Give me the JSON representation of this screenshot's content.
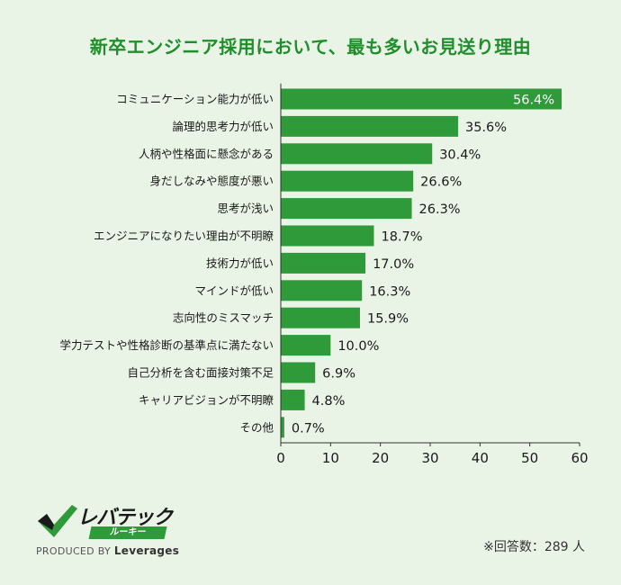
{
  "title": "新卒エンジニア採用において、最も多いお見送り理由",
  "note": "※回答数：289 人",
  "brand": {
    "name": "レバテック",
    "sub": "ルーキー",
    "tag_prefix": "PRODUCED BY",
    "tag_company": "Leverages"
  },
  "colors": {
    "bar": "#2e9a3a",
    "background": "#e9f4e6",
    "title": "#1f8f2c"
  },
  "chart_data": {
    "type": "bar",
    "orientation": "horizontal",
    "categories": [
      "コミュニケーション能力が低い",
      "論理的思考力が低い",
      "人柄や性格面に懸念がある",
      "身だしなみや態度が悪い",
      "思考が浅い",
      "エンジニアになりたい理由が不明瞭",
      "技術力が低い",
      "マインドが低い",
      "志向性のミスマッチ",
      "学力テストや性格診断の基準点に満たない",
      "自己分析を含む面接対策不足",
      "キャリアビジョンが不明瞭",
      "その他"
    ],
    "values": [
      56.4,
      35.6,
      30.4,
      26.6,
      26.3,
      18.7,
      17.0,
      16.3,
      15.9,
      10.0,
      6.9,
      4.8,
      0.7
    ],
    "value_labels": [
      "56.4%",
      "35.6%",
      "30.4%",
      "26.6%",
      "26.3%",
      "18.7%",
      "17.0%",
      "16.3%",
      "15.9%",
      "10.0%",
      "6.9%",
      "4.8%",
      "0.7%"
    ],
    "x_ticks": [
      "0",
      "10",
      "20",
      "30",
      "40",
      "50",
      "60"
    ],
    "xlim": [
      0,
      60
    ],
    "grid": false
  }
}
